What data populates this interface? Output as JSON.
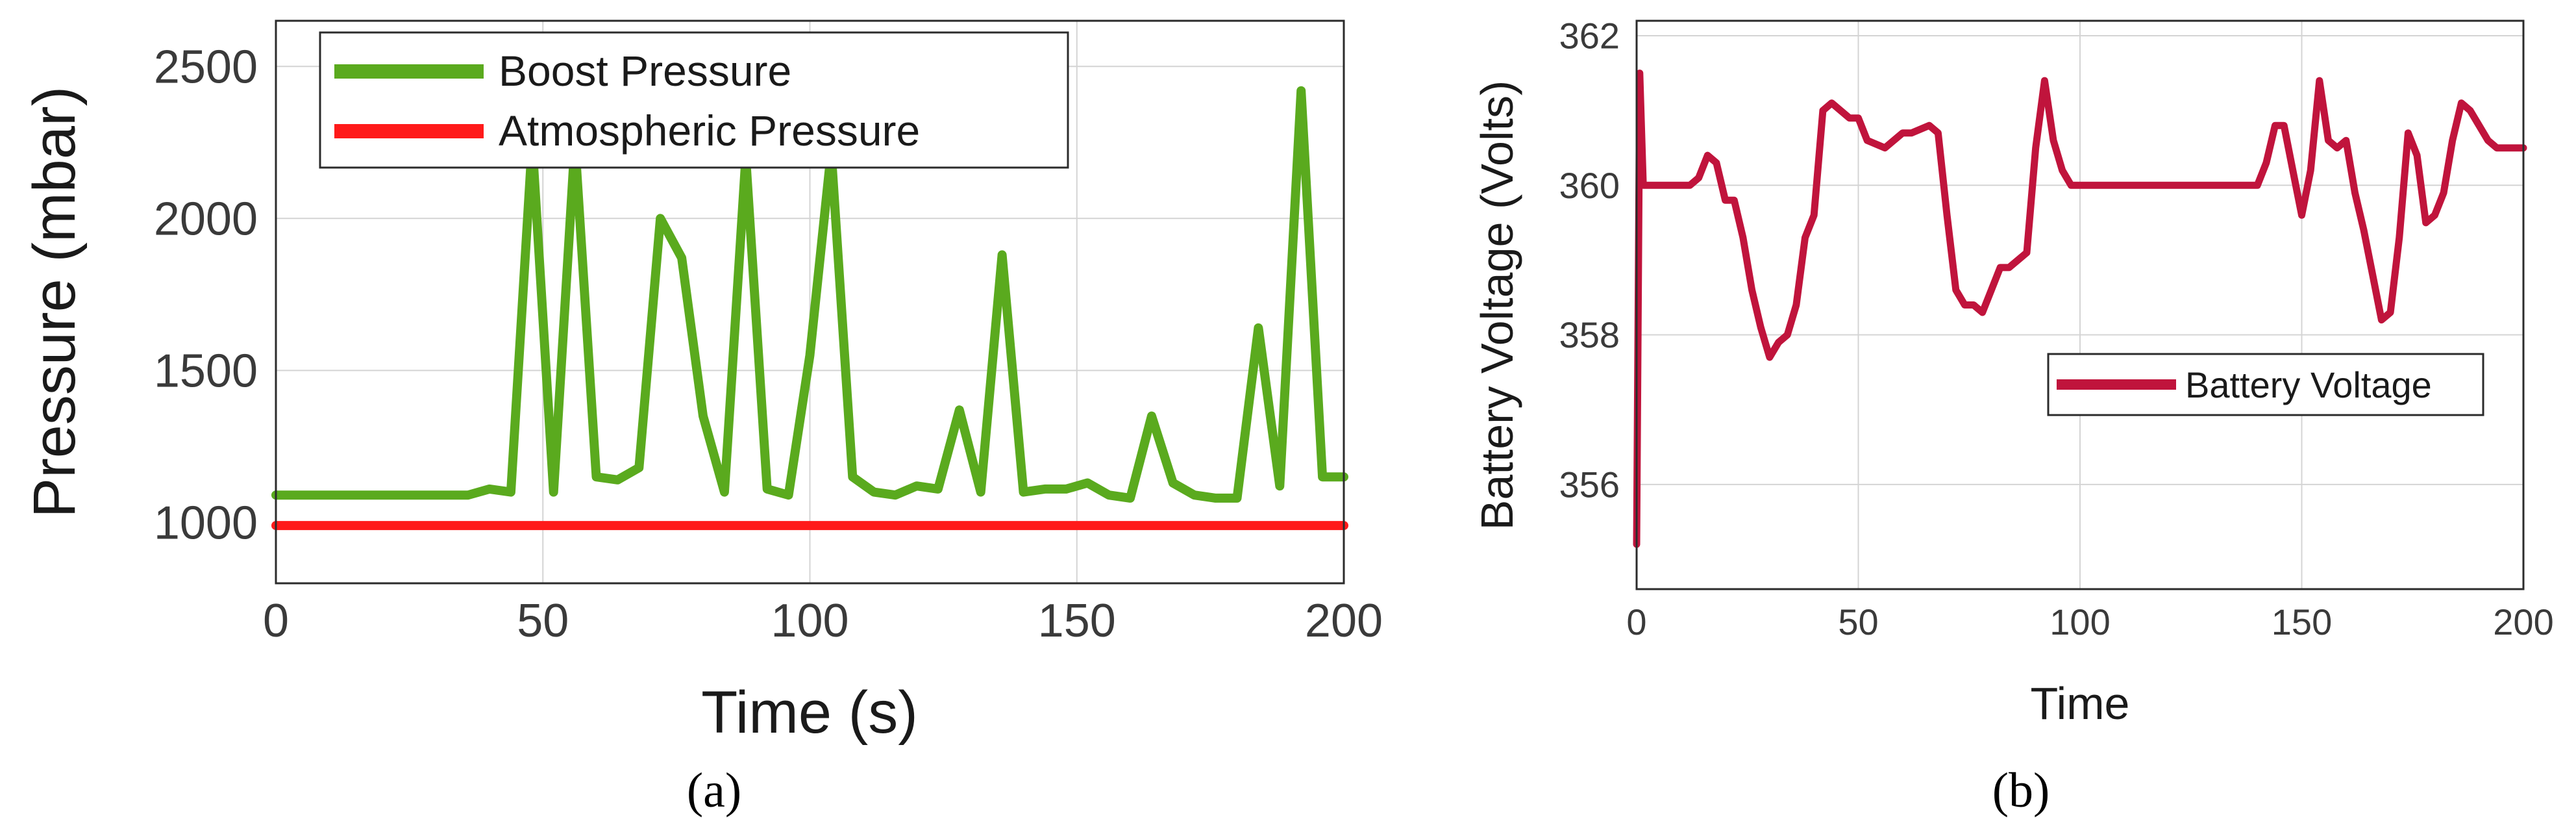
{
  "colors": {
    "boost": "#5aaa1e",
    "atmospheric": "#ff1a1a",
    "battery": "#c0143c"
  },
  "chart_data": [
    {
      "type": "line",
      "caption": "(a)",
      "xlabel": "Time (s)",
      "ylabel": "Pressure (mbar)",
      "xlim": [
        0,
        200
      ],
      "ylim": [
        800,
        2650
      ],
      "xticks": [
        "0",
        "50",
        "100",
        "150",
        "200"
      ],
      "yticks": [
        "1000",
        "1500",
        "2000",
        "2500"
      ],
      "grid": true,
      "legend_position": "top-left",
      "series": [
        {
          "name": "Boost Pressure",
          "x": [
            0,
            36,
            40,
            44,
            48,
            52,
            56,
            60,
            64,
            68,
            72,
            76,
            80,
            84,
            88,
            92,
            96,
            100,
            104,
            108,
            112,
            116,
            120,
            124,
            128,
            132,
            136,
            140,
            144,
            148,
            152,
            156,
            160,
            164,
            168,
            172,
            176,
            180,
            184,
            188,
            192,
            196,
            200
          ],
          "y": [
            1090,
            1090,
            1110,
            1100,
            2250,
            1100,
            2250,
            1150,
            1140,
            1180,
            2000,
            1870,
            1350,
            1100,
            2200,
            1110,
            1090,
            1550,
            2220,
            1150,
            1100,
            1090,
            1120,
            1110,
            1370,
            1100,
            1880,
            1100,
            1110,
            1110,
            1130,
            1090,
            1080,
            1350,
            1130,
            1090,
            1080,
            1080,
            1640,
            1120,
            2420,
            1150,
            1150
          ]
        },
        {
          "name": "Atmospheric Pressure",
          "x": [
            0,
            200
          ],
          "y": [
            990,
            990
          ]
        }
      ]
    },
    {
      "type": "line",
      "caption": "(b)",
      "xlabel": "Time",
      "ylabel": "Battery Voltage (Volts)",
      "xlim": [
        0,
        200
      ],
      "ylim": [
        354.6,
        362.2
      ],
      "xticks": [
        "0",
        "50",
        "100",
        "150",
        "200"
      ],
      "yticks": [
        "356",
        "358",
        "360",
        "362"
      ],
      "grid": true,
      "legend_position": "middle-right",
      "series": [
        {
          "name": "Battery Voltage",
          "x": [
            0,
            0.7,
            1.5,
            12,
            14,
            16,
            18,
            20,
            22,
            24,
            26,
            28,
            30,
            32,
            34,
            36,
            38,
            40,
            42,
            44,
            46,
            48,
            50,
            52,
            56,
            60,
            62,
            66,
            68,
            70,
            72,
            74,
            76,
            78,
            80,
            82,
            84,
            86,
            88,
            90,
            92,
            94,
            96,
            98,
            100,
            120,
            140,
            142,
            144,
            146,
            148,
            150,
            152,
            154,
            156,
            158,
            160,
            162,
            164,
            166,
            168,
            170,
            172,
            174,
            176,
            178,
            180,
            182,
            184,
            186,
            188,
            190,
            192,
            194,
            196,
            200
          ],
          "y": [
            355.2,
            361.5,
            360.0,
            360.0,
            360.1,
            360.4,
            360.3,
            359.8,
            359.8,
            359.3,
            358.6,
            358.1,
            357.7,
            357.9,
            358.0,
            358.4,
            359.3,
            359.6,
            361.0,
            361.1,
            361.0,
            360.9,
            360.9,
            360.6,
            360.5,
            360.7,
            360.7,
            360.8,
            360.7,
            359.6,
            358.6,
            358.4,
            358.4,
            358.3,
            358.6,
            358.9,
            358.9,
            359.0,
            359.1,
            360.5,
            361.4,
            360.6,
            360.2,
            360.0,
            360.0,
            360.0,
            360.0,
            360.3,
            360.8,
            360.8,
            360.2,
            359.6,
            360.2,
            361.4,
            360.6,
            360.5,
            360.6,
            359.9,
            359.4,
            358.8,
            358.2,
            358.3,
            359.3,
            360.7,
            360.4,
            359.5,
            359.6,
            359.9,
            360.6,
            361.1,
            361.0,
            360.8,
            360.6,
            360.5,
            360.5,
            360.5
          ]
        }
      ]
    }
  ]
}
